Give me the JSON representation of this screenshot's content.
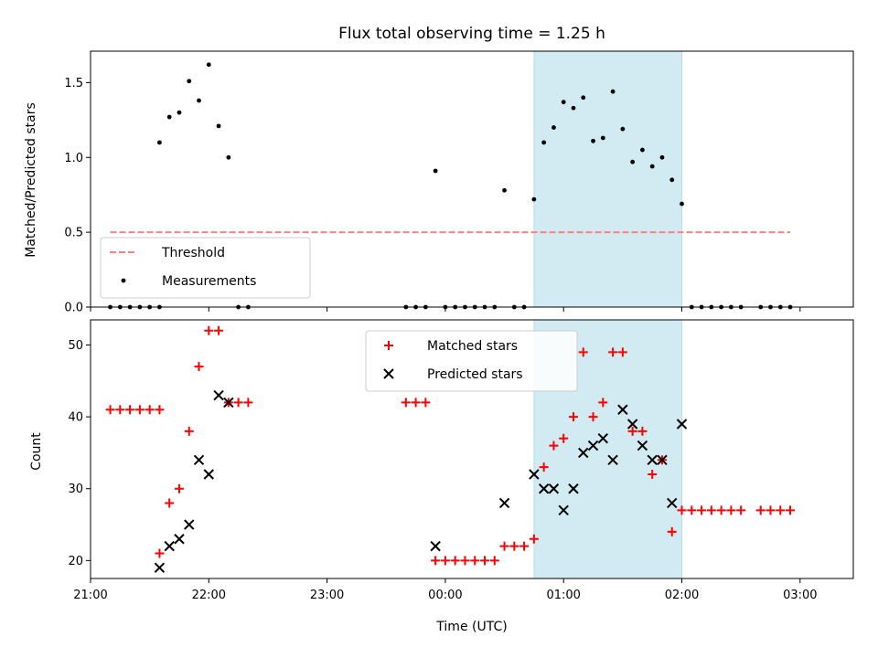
{
  "chart_data": [
    {
      "type": "scatter",
      "title": "Flux total observing time = 1.25 h",
      "xlabel": "",
      "ylabel": "Matched/Predicted stars",
      "xlim_hours": [
        -3.0,
        3.45
      ],
      "ylim": [
        0,
        1.71
      ],
      "yticks": [
        0.0,
        0.5,
        1.0,
        1.5
      ],
      "ytick_labels": [
        "0.0",
        "0.5",
        "1.0",
        "1.5"
      ],
      "shaded_region": {
        "x_start": "00:45",
        "x_end": "02:00",
        "color": "#add8e6"
      },
      "threshold": {
        "name": "Threshold",
        "y": 0.5,
        "x_start": "21:10",
        "x_end": "02:55",
        "color": "#ff8080",
        "style": "dashed"
      },
      "legend": {
        "position": "lower-left",
        "entries": [
          "Threshold",
          "Measurements"
        ]
      },
      "series": [
        {
          "name": "Measurements",
          "marker": "dot",
          "color": "#000000",
          "points": [
            [
              "21:10",
              0.0
            ],
            [
              "21:15",
              0.0
            ],
            [
              "21:20",
              0.0
            ],
            [
              "21:25",
              0.0
            ],
            [
              "21:30",
              0.0
            ],
            [
              "21:35",
              0.0
            ],
            [
              "21:35",
              1.1
            ],
            [
              "21:40",
              1.27
            ],
            [
              "21:45",
              1.3
            ],
            [
              "21:50",
              1.51
            ],
            [
              "21:55",
              1.38
            ],
            [
              "22:00",
              1.62
            ],
            [
              "22:05",
              1.21
            ],
            [
              "22:10",
              1.0
            ],
            [
              "22:15",
              0.0
            ],
            [
              "22:20",
              0.0
            ],
            [
              "23:40",
              0.0
            ],
            [
              "23:45",
              0.0
            ],
            [
              "23:50",
              0.0
            ],
            [
              "23:55",
              0.91
            ],
            [
              "00:00",
              0.0
            ],
            [
              "00:05",
              0.0
            ],
            [
              "00:10",
              0.0
            ],
            [
              "00:15",
              0.0
            ],
            [
              "00:20",
              0.0
            ],
            [
              "00:25",
              0.0
            ],
            [
              "00:30",
              0.78
            ],
            [
              "00:35",
              0.0
            ],
            [
              "00:40",
              0.0
            ],
            [
              "00:45",
              0.72
            ],
            [
              "00:50",
              1.1
            ],
            [
              "00:55",
              1.2
            ],
            [
              "01:00",
              1.37
            ],
            [
              "01:05",
              1.33
            ],
            [
              "01:10",
              1.4
            ],
            [
              "01:15",
              1.11
            ],
            [
              "01:20",
              1.13
            ],
            [
              "01:25",
              1.44
            ],
            [
              "01:30",
              1.19
            ],
            [
              "01:35",
              0.97
            ],
            [
              "01:40",
              1.05
            ],
            [
              "01:45",
              0.94
            ],
            [
              "01:50",
              1.0
            ],
            [
              "01:55",
              0.85
            ],
            [
              "02:00",
              0.69
            ],
            [
              "02:05",
              0.0
            ],
            [
              "02:10",
              0.0
            ],
            [
              "02:15",
              0.0
            ],
            [
              "02:20",
              0.0
            ],
            [
              "02:25",
              0.0
            ],
            [
              "02:30",
              0.0
            ],
            [
              "02:40",
              0.0
            ],
            [
              "02:45",
              0.0
            ],
            [
              "02:50",
              0.0
            ],
            [
              "02:55",
              0.0
            ]
          ]
        }
      ]
    },
    {
      "type": "scatter",
      "title": "",
      "xlabel": "Time (UTC)",
      "ylabel": "Count",
      "xlim_hours": [
        -3.0,
        3.45
      ],
      "ylim": [
        17.5,
        53.5
      ],
      "yticks": [
        20,
        30,
        40,
        50
      ],
      "ytick_labels": [
        "20",
        "30",
        "40",
        "50"
      ],
      "xticks": [
        "21:00",
        "22:00",
        "23:00",
        "00:00",
        "01:00",
        "02:00",
        "03:00"
      ],
      "shaded_region": {
        "x_start": "00:45",
        "x_end": "02:00",
        "color": "#add8e6"
      },
      "legend": {
        "position": "upper-center",
        "entries": [
          "Matched stars",
          "Predicted stars"
        ]
      },
      "series": [
        {
          "name": "Matched stars",
          "marker": "plus",
          "color": "#ff0000",
          "points": [
            [
              "21:10",
              41
            ],
            [
              "21:15",
              41
            ],
            [
              "21:20",
              41
            ],
            [
              "21:25",
              41
            ],
            [
              "21:30",
              41
            ],
            [
              "21:35",
              41
            ],
            [
              "21:35",
              21
            ],
            [
              "21:40",
              28
            ],
            [
              "21:45",
              30
            ],
            [
              "21:50",
              38
            ],
            [
              "21:55",
              47
            ],
            [
              "22:00",
              52
            ],
            [
              "22:05",
              52
            ],
            [
              "22:10",
              42
            ],
            [
              "22:15",
              42
            ],
            [
              "22:20",
              42
            ],
            [
              "23:40",
              42
            ],
            [
              "23:45",
              42
            ],
            [
              "23:50",
              42
            ],
            [
              "23:55",
              20
            ],
            [
              "00:00",
              20
            ],
            [
              "00:05",
              20
            ],
            [
              "00:10",
              20
            ],
            [
              "00:15",
              20
            ],
            [
              "00:20",
              20
            ],
            [
              "00:25",
              20
            ],
            [
              "00:30",
              22
            ],
            [
              "00:35",
              22
            ],
            [
              "00:40",
              22
            ],
            [
              "00:45",
              23
            ],
            [
              "00:50",
              33
            ],
            [
              "00:55",
              36
            ],
            [
              "01:00",
              37
            ],
            [
              "01:05",
              40
            ],
            [
              "01:10",
              49
            ],
            [
              "01:15",
              40
            ],
            [
              "01:20",
              42
            ],
            [
              "01:25",
              49
            ],
            [
              "01:30",
              49
            ],
            [
              "01:35",
              38
            ],
            [
              "01:40",
              38
            ],
            [
              "01:45",
              32
            ],
            [
              "01:50",
              34
            ],
            [
              "01:55",
              24
            ],
            [
              "02:00",
              27
            ],
            [
              "02:05",
              27
            ],
            [
              "02:10",
              27
            ],
            [
              "02:15",
              27
            ],
            [
              "02:20",
              27
            ],
            [
              "02:25",
              27
            ],
            [
              "02:30",
              27
            ],
            [
              "02:40",
              27
            ],
            [
              "02:45",
              27
            ],
            [
              "02:50",
              27
            ],
            [
              "02:55",
              27
            ]
          ]
        },
        {
          "name": "Predicted stars",
          "marker": "x",
          "color": "#000000",
          "points": [
            [
              "21:35",
              19
            ],
            [
              "21:40",
              22
            ],
            [
              "21:45",
              23
            ],
            [
              "21:50",
              25
            ],
            [
              "21:55",
              34
            ],
            [
              "22:00",
              32
            ],
            [
              "22:05",
              43
            ],
            [
              "22:10",
              42
            ],
            [
              "23:55",
              22
            ],
            [
              "00:30",
              28
            ],
            [
              "00:45",
              32
            ],
            [
              "00:50",
              30
            ],
            [
              "00:55",
              30
            ],
            [
              "01:00",
              27
            ],
            [
              "01:05",
              30
            ],
            [
              "01:10",
              35
            ],
            [
              "01:15",
              36
            ],
            [
              "01:20",
              37
            ],
            [
              "01:25",
              34
            ],
            [
              "01:30",
              41
            ],
            [
              "01:35",
              39
            ],
            [
              "01:40",
              36
            ],
            [
              "01:45",
              34
            ],
            [
              "01:50",
              34
            ],
            [
              "01:55",
              28
            ],
            [
              "02:00",
              39
            ]
          ]
        }
      ]
    }
  ]
}
